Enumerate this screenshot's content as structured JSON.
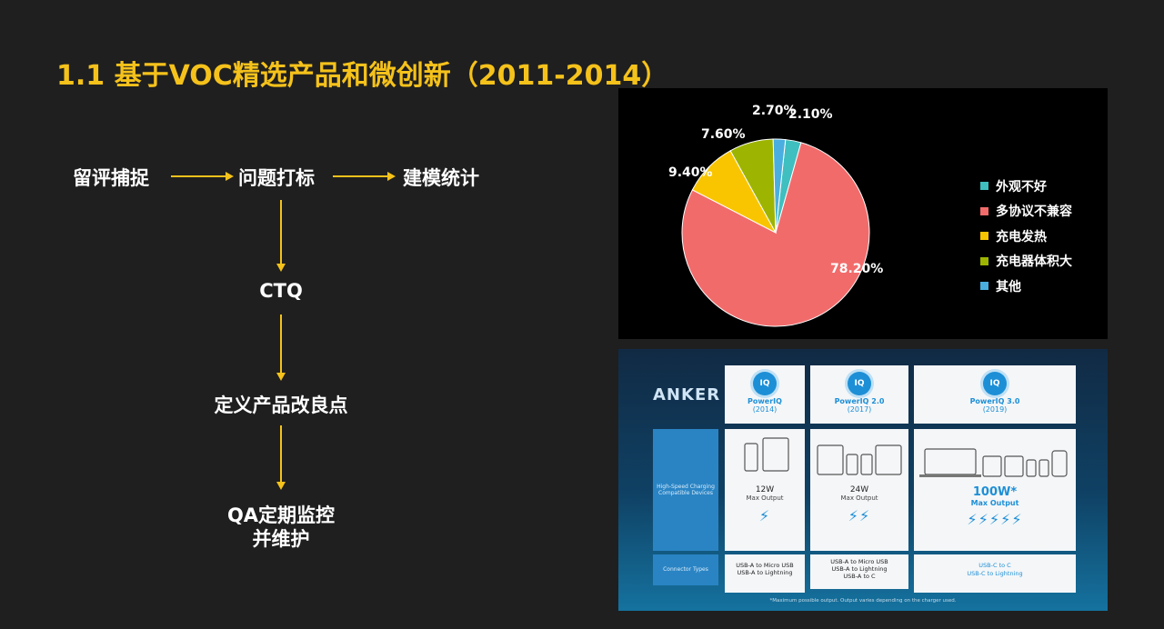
{
  "title": "1.1 基于VOC精选产品和微创新（2011-2014）",
  "flow": {
    "step1": "留评捕捉",
    "step2": "问题打标",
    "step3": "建模统计",
    "step4": "CTQ",
    "step5": "定义产品改良点",
    "step6_line1": "QA定期监控",
    "step6_line2": "并维护"
  },
  "chart_data": {
    "type": "pie",
    "labels": [
      "外观不好",
      "多协议不兼容",
      "充电发热",
      "充电器体积大",
      "其他"
    ],
    "values": [
      2.7,
      78.2,
      9.4,
      7.6,
      2.1
    ],
    "value_labels": [
      "2.70%",
      "78.20%",
      "9.40%",
      "7.60%",
      "2.10%"
    ],
    "colors": [
      "#3fbfbf",
      "#f26b6b",
      "#f9c500",
      "#9db400",
      "#4aaee0"
    ],
    "legend_position": "right",
    "label_color": "#ffffff"
  },
  "anker": {
    "brand": "ANKER",
    "columns": [
      {
        "badge": "IQ",
        "name": "PowerIQ",
        "year": "(2014)",
        "watt": "12W",
        "max_output": "Max Output",
        "bolts": "⚡",
        "connectors": [
          "USB-A to Micro USB",
          "USB-A to Lightning"
        ]
      },
      {
        "badge": "IQ",
        "name": "PowerIQ 2.0",
        "year": "(2017)",
        "watt": "24W",
        "max_output": "Max Output",
        "bolts": "⚡⚡",
        "connectors": [
          "USB-A to Micro USB",
          "USB-A to Lightning",
          "USB-A to C"
        ]
      },
      {
        "badge": "IQ",
        "name": "PowerIQ 3.0",
        "year": "(2019)",
        "watt": "100W*",
        "max_output": "Max Output",
        "bolts": "⚡⚡⚡⚡⚡",
        "connectors": [
          "USB-C to C",
          "USB-C to Lightning"
        ]
      }
    ],
    "row_label_devices": "High-Speed Charging Compatible Devices",
    "row_label_connectors": "Connector Types",
    "footnote": "*Maximum possible output. Output varies depending on the charger used."
  }
}
